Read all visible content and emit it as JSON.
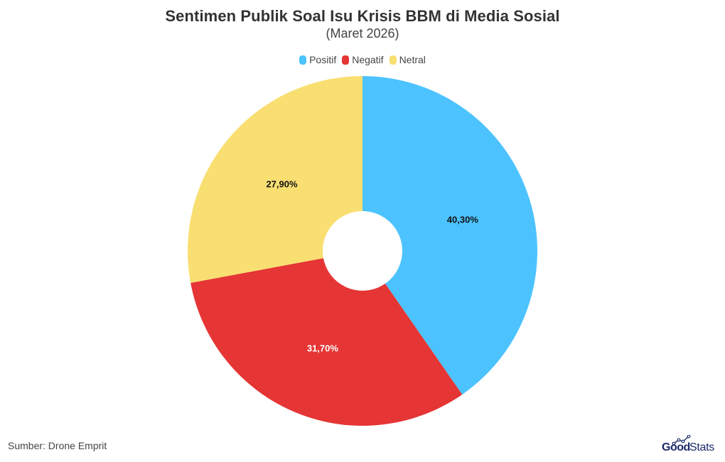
{
  "header": {
    "title": "Sentimen Publik Soal Isu Krisis BBM di Media Sosial",
    "subtitle": "(Maret 2026)"
  },
  "legend": [
    {
      "label": "Positif",
      "color": "#4CC3FF"
    },
    {
      "label": "Negatif",
      "color": "#E53535"
    },
    {
      "label": "Netral",
      "color": "#F9DF72"
    }
  ],
  "chart_data": {
    "type": "pie",
    "variant": "donut",
    "title": "Sentimen Publik Soal Isu Krisis BBM di Media Sosial",
    "subtitle": "(Maret 2026)",
    "categories": [
      "Positif",
      "Negatif",
      "Netral"
    ],
    "values": [
      40.3,
      31.7,
      27.9
    ],
    "labels": [
      "40,30%",
      "31,70%",
      "27,90%"
    ],
    "colors": [
      "#4CC3FF",
      "#E53535",
      "#F9DF72"
    ],
    "label_colors": [
      "#111111",
      "#ffffff",
      "#111111"
    ],
    "unit": "%",
    "start_angle_deg": 0,
    "direction": "clockwise",
    "legend_position": "top"
  },
  "footer": {
    "source": "Sumber: Drone Emprit",
    "logo_bold": "Good",
    "logo_light": "Stats"
  }
}
